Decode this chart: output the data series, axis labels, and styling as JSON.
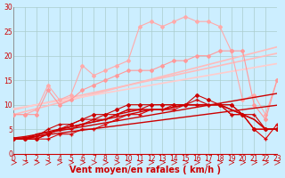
{
  "background_color": "#cceeff",
  "grid_color": "#aacccc",
  "xlabel": "Vent moyen/en rafales ( km/h )",
  "xlim": [
    0,
    23
  ],
  "ylim": [
    0,
    30
  ],
  "xticks": [
    0,
    1,
    2,
    3,
    4,
    5,
    6,
    7,
    8,
    9,
    10,
    11,
    12,
    13,
    14,
    15,
    16,
    17,
    18,
    19,
    20,
    21,
    22,
    23
  ],
  "yticks": [
    0,
    5,
    10,
    15,
    20,
    25,
    30
  ],
  "series": [
    {
      "x": [
        0,
        1,
        2,
        3,
        4,
        5,
        6,
        7,
        8,
        9,
        10,
        11,
        12,
        13,
        14,
        15,
        16,
        17,
        18,
        19,
        20,
        21,
        22,
        23
      ],
      "y": [
        8.0,
        8.6,
        9.2,
        9.8,
        10.4,
        11.0,
        11.6,
        12.2,
        12.8,
        13.4,
        14.0,
        14.6,
        15.2,
        15.8,
        16.4,
        17.0,
        17.6,
        18.2,
        18.8,
        19.4,
        20.0,
        20.6,
        21.2,
        21.8
      ],
      "color": "#ffbbbb",
      "lw": 1.2,
      "marker": null,
      "ms": 0,
      "alpha": 1.0
    },
    {
      "x": [
        0,
        1,
        2,
        3,
        4,
        5,
        6,
        7,
        8,
        9,
        10,
        11,
        12,
        13,
        14,
        15,
        16,
        17,
        18,
        19,
        20,
        21,
        22,
        23
      ],
      "y": [
        9.0,
        9.5,
        10.0,
        10.5,
        11.0,
        11.5,
        12.0,
        12.5,
        13.0,
        13.5,
        14.0,
        14.5,
        15.0,
        15.5,
        16.0,
        16.5,
        17.0,
        17.5,
        18.0,
        18.5,
        19.0,
        19.5,
        20.0,
        20.5
      ],
      "color": "#ffbbbb",
      "lw": 1.2,
      "marker": null,
      "ms": 0,
      "alpha": 1.0
    },
    {
      "x": [
        0,
        1,
        2,
        3,
        4,
        5,
        6,
        7,
        8,
        9,
        10,
        11,
        12,
        13,
        14,
        15,
        16,
        17,
        18,
        19,
        20,
        21,
        22,
        23
      ],
      "y": [
        9.2,
        9.6,
        10.0,
        10.4,
        10.8,
        11.2,
        11.6,
        12.0,
        12.4,
        12.8,
        13.2,
        13.6,
        14.0,
        14.4,
        14.8,
        15.2,
        15.6,
        16.0,
        16.4,
        16.8,
        17.2,
        17.6,
        18.0,
        18.4
      ],
      "color": "#ffcccc",
      "lw": 1.2,
      "marker": null,
      "ms": 0,
      "alpha": 1.0
    },
    {
      "x": [
        0,
        1,
        2,
        3,
        4,
        5,
        6,
        7,
        8,
        9,
        10,
        11,
        12,
        13,
        14,
        15,
        16,
        17,
        18,
        19,
        20,
        21,
        22,
        23
      ],
      "y": [
        8,
        8,
        9,
        14,
        11,
        12,
        18,
        16,
        17,
        18,
        19,
        26,
        27,
        26,
        27,
        28,
        27,
        27,
        26,
        21,
        11,
        12,
        8,
        15
      ],
      "color": "#ffaaaa",
      "lw": 0.8,
      "marker": "D",
      "ms": 2.0,
      "alpha": 1.0
    },
    {
      "x": [
        0,
        1,
        2,
        3,
        4,
        5,
        6,
        7,
        8,
        9,
        10,
        11,
        12,
        13,
        14,
        15,
        16,
        17,
        18,
        19,
        20,
        21,
        22,
        23
      ],
      "y": [
        8,
        8,
        8,
        13,
        10,
        11,
        13,
        14,
        15,
        16,
        17,
        17,
        17,
        18,
        19,
        19,
        20,
        20,
        21,
        21,
        21,
        10,
        7,
        15
      ],
      "color": "#ff9999",
      "lw": 0.8,
      "marker": "D",
      "ms": 2.0,
      "alpha": 1.0
    },
    {
      "x": [
        0,
        1,
        2,
        3,
        4,
        5,
        6,
        7,
        8,
        9,
        10,
        11,
        12,
        13,
        14,
        15,
        16,
        17,
        18,
        19,
        20,
        21,
        22,
        23
      ],
      "y": [
        3,
        3,
        3,
        4,
        5,
        5,
        6,
        7,
        7,
        8,
        9,
        9,
        9,
        9,
        10,
        10,
        10,
        10,
        10,
        8,
        8,
        5,
        5,
        5
      ],
      "color": "#dd0000",
      "lw": 0.8,
      "marker": "+",
      "ms": 3.5,
      "alpha": 1.0
    },
    {
      "x": [
        0,
        1,
        2,
        3,
        4,
        5,
        6,
        7,
        8,
        9,
        10,
        11,
        12,
        13,
        14,
        15,
        16,
        17,
        18,
        19,
        20,
        21,
        22,
        23
      ],
      "y": [
        3,
        3,
        3,
        3,
        4,
        4,
        5,
        5,
        6,
        7,
        8,
        8,
        9,
        9,
        9,
        10,
        10,
        10,
        10,
        10,
        8,
        5,
        3,
        6
      ],
      "color": "#dd0000",
      "lw": 0.8,
      "marker": "+",
      "ms": 3.5,
      "alpha": 1.0
    },
    {
      "x": [
        0,
        1,
        2,
        3,
        4,
        5,
        6,
        7,
        8,
        9,
        10,
        11,
        12,
        13,
        14,
        15,
        16,
        17,
        18,
        19,
        20,
        21,
        22,
        23
      ],
      "y": [
        3,
        3,
        3.5,
        4,
        5,
        5.5,
        6,
        6.5,
        7,
        7.5,
        8,
        8.5,
        9,
        9,
        9.5,
        10,
        10,
        10,
        10,
        9,
        8,
        7,
        5,
        5
      ],
      "color": "#cc0000",
      "lw": 1.0,
      "marker": null,
      "ms": 0,
      "alpha": 1.0
    },
    {
      "x": [
        0,
        1,
        2,
        3,
        4,
        5,
        6,
        7,
        8,
        9,
        10,
        11,
        12,
        13,
        14,
        15,
        16,
        17,
        18,
        19,
        20,
        21,
        22,
        23
      ],
      "y": [
        3,
        3,
        4,
        4.5,
        5,
        5.5,
        6,
        6.5,
        7,
        8,
        8.5,
        9,
        9,
        9,
        9.5,
        10,
        10,
        10,
        10,
        9,
        8,
        7,
        5,
        5
      ],
      "color": "#cc0000",
      "lw": 1.0,
      "marker": null,
      "ms": 0,
      "alpha": 1.0
    },
    {
      "x": [
        0,
        1,
        2,
        3,
        4,
        5,
        6,
        7,
        8,
        9,
        10,
        11,
        12,
        13,
        14,
        15,
        16,
        17,
        18,
        19,
        20,
        21,
        22,
        23
      ],
      "y": [
        3,
        3,
        3,
        4,
        5,
        6,
        7,
        8,
        8,
        9,
        10,
        10,
        10,
        10,
        10,
        10,
        12,
        11,
        10,
        10,
        8,
        5,
        5,
        5
      ],
      "color": "#cc0000",
      "lw": 0.8,
      "marker": "D",
      "ms": 2.0,
      "alpha": 1.0
    },
    {
      "x": [
        0,
        1,
        2,
        3,
        4,
        5,
        6,
        7,
        8,
        9,
        10,
        11,
        12,
        13,
        14,
        15,
        16,
        17,
        18,
        19,
        20,
        21,
        22,
        23
      ],
      "y": [
        3,
        3,
        3.5,
        5,
        6,
        6,
        7,
        7,
        8,
        8,
        9,
        9,
        10,
        10,
        10,
        10,
        11,
        10,
        10,
        8,
        8,
        8,
        5,
        5
      ],
      "color": "#cc0000",
      "lw": 0.8,
      "marker": "+",
      "ms": 3.0,
      "alpha": 1.0
    },
    {
      "x": [
        0,
        1,
        2,
        3,
        4,
        5,
        6,
        7,
        8,
        9,
        10,
        11,
        12,
        13,
        14,
        15,
        16,
        17,
        18,
        19,
        20,
        21,
        22,
        23
      ],
      "y": [
        3.0,
        3.3,
        3.6,
        3.9,
        4.2,
        4.5,
        4.8,
        5.1,
        5.4,
        5.7,
        6.0,
        6.3,
        6.6,
        6.9,
        7.2,
        7.5,
        7.8,
        8.1,
        8.4,
        8.7,
        9.0,
        9.3,
        9.6,
        9.9
      ],
      "color": "#cc0000",
      "lw": 1.0,
      "marker": null,
      "ms": 0,
      "alpha": 1.0
    },
    {
      "x": [
        0,
        1,
        2,
        3,
        4,
        5,
        6,
        7,
        8,
        9,
        10,
        11,
        12,
        13,
        14,
        15,
        16,
        17,
        18,
        19,
        20,
        21,
        22,
        23
      ],
      "y": [
        3.2,
        3.5,
        3.9,
        4.3,
        4.7,
        5.1,
        5.5,
        5.9,
        6.3,
        6.7,
        7.1,
        7.5,
        7.9,
        8.3,
        8.7,
        9.1,
        9.5,
        9.9,
        10.3,
        10.7,
        11.1,
        11.5,
        11.9,
        12.3
      ],
      "color": "#cc0000",
      "lw": 1.0,
      "marker": null,
      "ms": 0,
      "alpha": 1.0
    }
  ],
  "tick_label_color": "#cc0000",
  "xlabel_color": "#cc0000",
  "axis_label_fontsize": 7,
  "tick_fontsize": 5.5
}
